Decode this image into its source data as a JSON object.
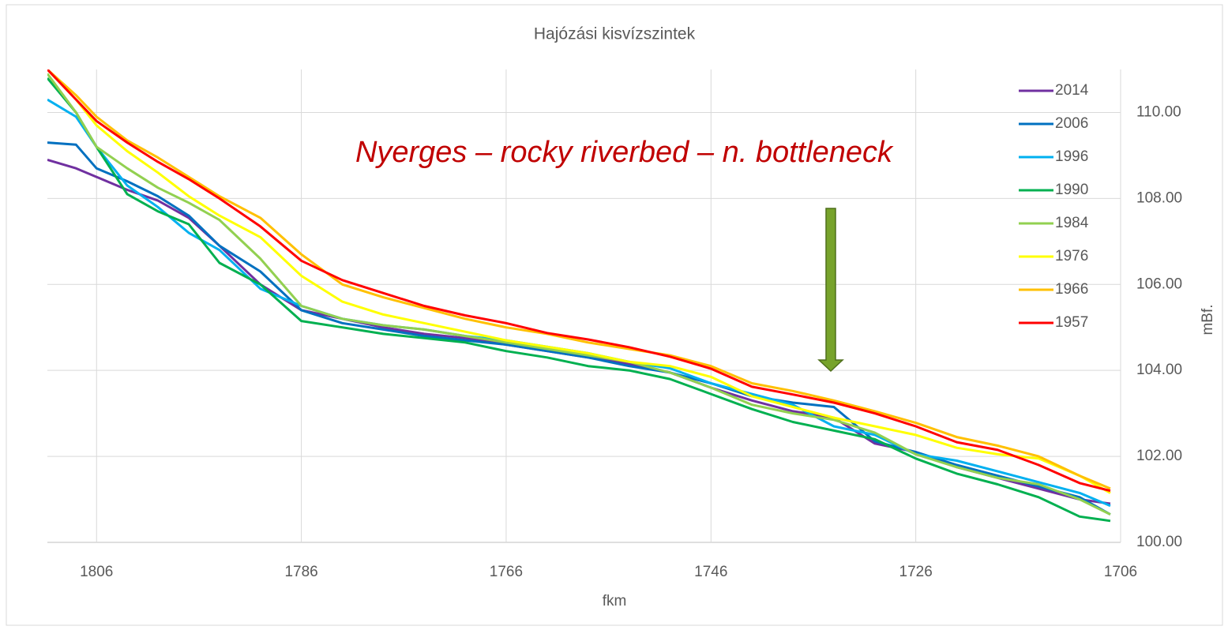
{
  "chart_data": {
    "type": "line",
    "title": "Hajózási kisvízszintek",
    "x_label": "fkm",
    "y_label": "mBf.",
    "annotation": "Nyerges – rocky riverbed – n. bottleneck",
    "x": [
      1810.8,
      1808,
      1806,
      1803,
      1800,
      1797,
      1794,
      1790,
      1786,
      1782,
      1778,
      1774,
      1770,
      1766,
      1762,
      1758,
      1754,
      1750,
      1746,
      1742,
      1738,
      1734,
      1730,
      1726,
      1722,
      1718,
      1714,
      1710,
      1707
    ],
    "xlim": [
      1810.8,
      1706
    ],
    "xticks": [
      1806,
      1786,
      1766,
      1746,
      1726,
      1706
    ],
    "ylim": [
      100,
      111
    ],
    "yticks": [
      {
        "value": 100,
        "label": "100.00"
      },
      {
        "value": 102,
        "label": "102.00"
      },
      {
        "value": 104,
        "label": "104.00"
      },
      {
        "value": 106,
        "label": "106.00"
      },
      {
        "value": 108,
        "label": "108.00"
      },
      {
        "value": 110,
        "label": "110.00"
      }
    ],
    "y_axis_side": "right",
    "grid": true,
    "legend": "right",
    "series": [
      {
        "name": "2014",
        "color": "#7030a0",
        "values": [
          108.9,
          108.7,
          108.5,
          108.2,
          107.95,
          107.55,
          106.9,
          106.0,
          105.4,
          105.2,
          105.0,
          104.85,
          104.75,
          104.6,
          104.45,
          104.3,
          104.15,
          103.95,
          103.6,
          103.3,
          103.05,
          102.9,
          102.3,
          102.1,
          101.75,
          101.5,
          101.25,
          101.0,
          100.9
        ]
      },
      {
        "name": "2006",
        "color": "#0070c0",
        "values": [
          109.3,
          109.25,
          108.7,
          108.4,
          108.05,
          107.6,
          106.9,
          106.3,
          105.4,
          105.1,
          104.95,
          104.8,
          104.7,
          104.6,
          104.45,
          104.3,
          104.1,
          103.95,
          103.7,
          103.4,
          103.25,
          103.15,
          102.35,
          102.1,
          101.8,
          101.55,
          101.3,
          101.05,
          100.65
        ]
      },
      {
        "name": "1996",
        "color": "#00b0f0",
        "values": [
          110.3,
          109.9,
          109.2,
          108.3,
          107.8,
          107.2,
          106.8,
          105.9,
          105.5,
          105.2,
          105.05,
          104.95,
          104.8,
          104.7,
          104.55,
          104.4,
          104.2,
          104.05,
          103.7,
          103.45,
          103.2,
          102.7,
          102.5,
          102.05,
          101.9,
          101.65,
          101.4,
          101.15,
          100.85
        ]
      },
      {
        "name": "1990",
        "color": "#00b050",
        "values": [
          110.8,
          110.0,
          109.2,
          108.1,
          107.7,
          107.4,
          106.5,
          106.0,
          105.15,
          105.0,
          104.85,
          104.75,
          104.65,
          104.45,
          104.3,
          104.1,
          104.0,
          103.8,
          103.45,
          103.1,
          102.8,
          102.6,
          102.4,
          101.95,
          101.6,
          101.35,
          101.05,
          100.6,
          100.5
        ]
      },
      {
        "name": "1984",
        "color": "#92d050",
        "values": [
          110.9,
          110.0,
          109.2,
          108.7,
          108.25,
          107.9,
          107.5,
          106.6,
          105.5,
          105.2,
          105.05,
          104.95,
          104.8,
          104.65,
          104.5,
          104.35,
          104.2,
          103.95,
          103.6,
          103.2,
          103.0,
          102.85,
          102.55,
          102.05,
          101.75,
          101.5,
          101.35,
          101.0,
          100.65
        ]
      },
      {
        "name": "1976",
        "color": "#ffff00",
        "values": [
          111.0,
          110.3,
          109.7,
          109.1,
          108.6,
          108.05,
          107.6,
          107.1,
          106.2,
          105.6,
          105.3,
          105.1,
          104.9,
          104.7,
          104.55,
          104.4,
          104.2,
          104.1,
          103.85,
          103.4,
          103.15,
          102.9,
          102.7,
          102.5,
          102.2,
          102.05,
          101.95,
          101.55,
          101.15
        ]
      },
      {
        "name": "1966",
        "color": "#ffc000",
        "values": [
          111.0,
          110.4,
          109.9,
          109.35,
          108.95,
          108.5,
          108.05,
          107.55,
          106.7,
          106.0,
          105.7,
          105.45,
          105.2,
          105.0,
          104.85,
          104.65,
          104.5,
          104.35,
          104.1,
          103.7,
          103.52,
          103.3,
          103.05,
          102.78,
          102.45,
          102.25,
          102.0,
          101.55,
          101.25
        ]
      },
      {
        "name": "1957",
        "color": "#ff0000",
        "values": [
          111.0,
          110.3,
          109.8,
          109.3,
          108.85,
          108.45,
          108.0,
          107.35,
          106.55,
          106.1,
          105.8,
          105.5,
          105.28,
          105.1,
          104.87,
          104.72,
          104.54,
          104.32,
          104.04,
          103.62,
          103.44,
          103.25,
          103.0,
          102.7,
          102.33,
          102.15,
          101.8,
          101.38,
          101.2
        ]
      }
    ]
  }
}
